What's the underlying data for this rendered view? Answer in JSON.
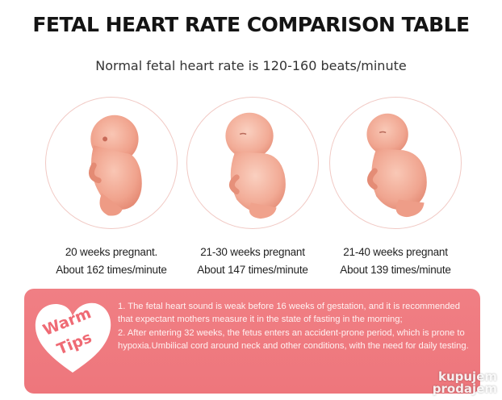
{
  "header": {
    "title": "FETAL HEART RATE COMPARISON TABLE",
    "subtitle": "Normal fetal heart rate is 120-160 beats/minute"
  },
  "stages": [
    {
      "weeks": "20 weeks pregnant.",
      "rate": "About 162 times/minute"
    },
    {
      "weeks": "21-30 weeks pregnant",
      "rate": "About 147 times/minute"
    },
    {
      "weeks": "21-40 weeks pregnant",
      "rate": "About 139 times/minute"
    }
  ],
  "tips": {
    "badge_line1": "Warm",
    "badge_line2": "Tips",
    "items": [
      "1. The fetal heart sound is weak before 16 weeks of gestation, and it is recommended that expectant mothers measure it in the state of fasting in the morning;",
      "2. After entering 32 weeks, the fetus enters an accident-prone period, which is prone to hypoxia.Umbilical cord around neck and other conditions, with the need for daily testing."
    ]
  },
  "watermark": {
    "line1": "kupujem",
    "line2": "prodajem"
  },
  "colors": {
    "panel": "#ef787e",
    "fetus": "#f3a996",
    "circle_border": "#f1c9c4",
    "heart": "#ffffff"
  }
}
